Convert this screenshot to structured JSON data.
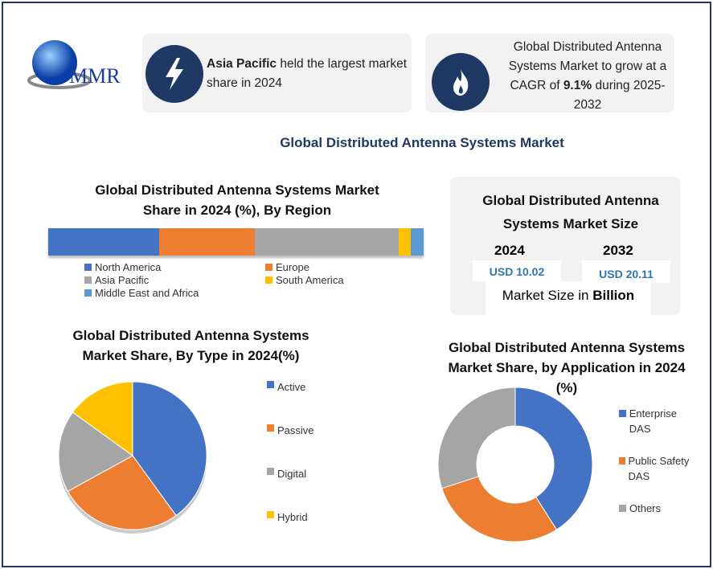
{
  "logo": {
    "text": "MMR"
  },
  "cards": [
    {
      "icon": "lightning-icon",
      "bold": "Asia Pacific",
      "text": " held the largest market share in 2024"
    },
    {
      "icon": "flame-icon",
      "pre": "Global Distributed Antenna Systems Market to grow at a CAGR of ",
      "bold": "9.1%",
      "post": " during 2025-2032"
    }
  ],
  "main_title": "Global Distributed Antenna Systems Market",
  "size_box": {
    "title": "Global Distributed Antenna Systems Market Size",
    "y1": "2024",
    "v1": "USD 10.02",
    "y2": "2032",
    "v2": "USD 20.11",
    "unit_pre": "Market Size in ",
    "unit_bold": "Billion"
  },
  "colors": {
    "blue": "#4472c4",
    "orange": "#ed7d31",
    "gray": "#a5a5a5",
    "yellow": "#ffc000",
    "lightblue": "#5b9bd5",
    "navy": "#1f3864",
    "title": "#1f3864"
  },
  "chart_data": [
    {
      "type": "bar",
      "title": "Global Distributed Antenna Systems Market Share in 2024 (%), By Region",
      "stacked": true,
      "unit": "%",
      "categories": [
        "North America",
        "Europe",
        "Asia Pacific",
        "South America",
        "Middle East and Africa"
      ],
      "values": [
        29.6,
        25.5,
        38.3,
        3.2,
        3.4
      ],
      "colors": [
        "#4472c4",
        "#ed7d31",
        "#a5a5a5",
        "#ffc000",
        "#5b9bd5"
      ]
    },
    {
      "type": "pie",
      "title": "Global Distributed Antenna Systems Market Share, By Type in 2024(%)",
      "categories": [
        "Active",
        "Passive",
        "Digital",
        "Hybrid"
      ],
      "values": [
        40,
        27,
        18,
        15
      ],
      "colors": [
        "#4472c4",
        "#ed7d31",
        "#a5a5a5",
        "#ffc000"
      ]
    },
    {
      "type": "pie",
      "donut": true,
      "title": "Global Distributed Antenna Systems Market Share, by Application in 2024 (%)",
      "categories": [
        "Enterprise DAS",
        "Public Safety DAS",
        "Others"
      ],
      "values": [
        41,
        29,
        30
      ],
      "colors": [
        "#4472c4",
        "#ed7d31",
        "#a5a5a5"
      ]
    }
  ]
}
